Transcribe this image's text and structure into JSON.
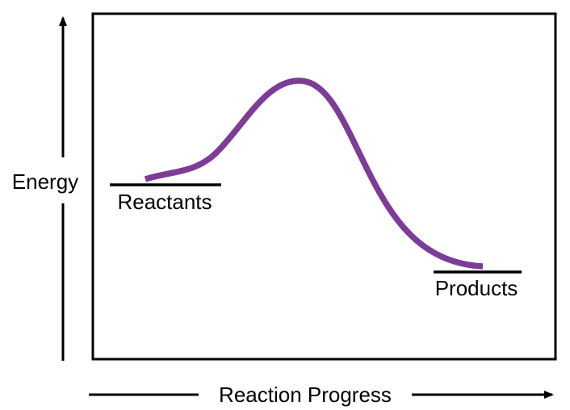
{
  "diagram": {
    "type": "energy-profile",
    "axis_y_label": "Energy",
    "axis_x_label": "Reaction Progress",
    "reactants_label": "Reactants",
    "products_label": "Products"
  },
  "colors": {
    "curve": "#7d3c98",
    "frame": "#000000",
    "background": "#ffffff"
  }
}
